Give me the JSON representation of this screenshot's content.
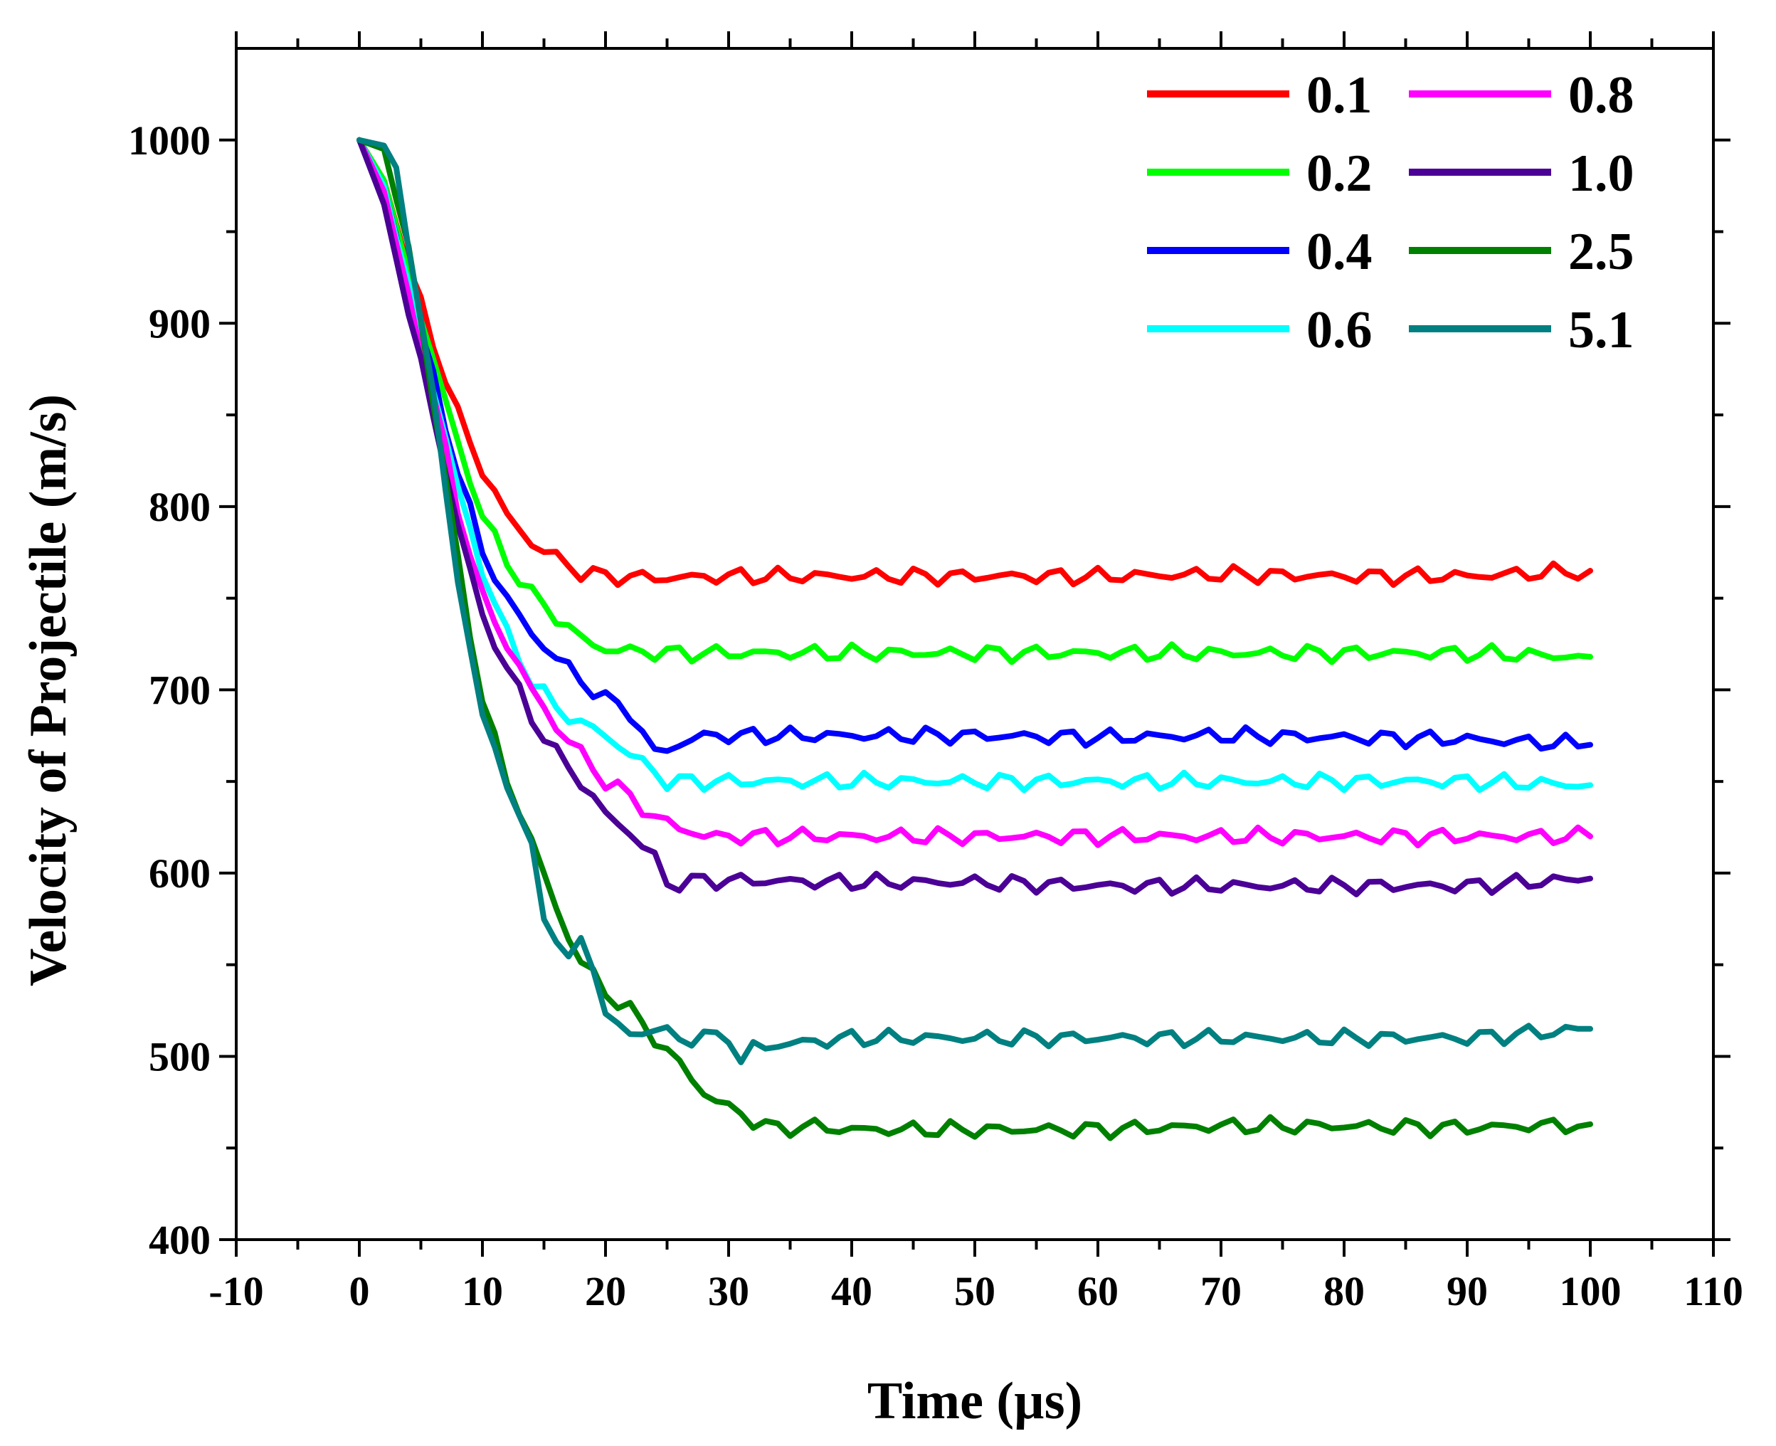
{
  "chart_data": {
    "type": "line",
    "title": "",
    "xlabel": "Time (µs)",
    "ylabel": "Velocity of  Projectile (m/s)",
    "xlim": [
      -10,
      110
    ],
    "ylim": [
      400,
      1050
    ],
    "xticks": [
      -10,
      0,
      10,
      20,
      30,
      40,
      50,
      60,
      70,
      80,
      90,
      100,
      110
    ],
    "yticks": [
      400,
      500,
      600,
      700,
      800,
      900,
      1000
    ],
    "xtick_labels": [
      "-10",
      "0",
      "10",
      "20",
      "30",
      "40",
      "50",
      "60",
      "70",
      "80",
      "90",
      "100",
      "110"
    ],
    "ytick_labels": [
      "400",
      "500",
      "600",
      "700",
      "800",
      "900",
      "1000"
    ],
    "legend_position": "top-right",
    "series": [
      {
        "name": "0.1",
        "color": "#ff0000",
        "x": [
          0,
          2,
          4,
          6,
          8,
          10,
          12,
          14,
          16,
          18,
          20,
          25,
          30,
          40,
          50,
          60,
          70,
          80,
          90,
          100
        ],
        "y": [
          1000,
          978,
          930,
          890,
          850,
          820,
          795,
          780,
          772,
          764,
          762,
          761,
          762,
          762,
          762,
          762,
          763,
          762,
          762,
          765
        ]
      },
      {
        "name": "0.2",
        "color": "#00ff00",
        "x": [
          0,
          2,
          4,
          6,
          8,
          10,
          12,
          14,
          16,
          18,
          20,
          25,
          30,
          40,
          50,
          60,
          70,
          80,
          90,
          100
        ],
        "y": [
          1000,
          978,
          928,
          880,
          835,
          795,
          770,
          752,
          740,
          728,
          722,
          720,
          720,
          720,
          720,
          720,
          720,
          720,
          720,
          718
        ]
      },
      {
        "name": "0.4",
        "color": "#0000ff",
        "x": [
          0,
          2,
          4,
          6,
          8,
          10,
          12,
          14,
          16,
          18,
          20,
          22,
          24,
          25,
          28,
          30,
          40,
          50,
          60,
          70,
          80,
          90,
          100
        ],
        "y": [
          1000,
          975,
          920,
          870,
          820,
          775,
          750,
          730,
          718,
          705,
          695,
          688,
          665,
          668,
          675,
          675,
          675,
          675,
          674,
          675,
          674,
          673,
          670
        ]
      },
      {
        "name": "0.6",
        "color": "#00ffff",
        "x": [
          0,
          2,
          4,
          6,
          8,
          10,
          12,
          14,
          16,
          18,
          20,
          22,
          24,
          25,
          30,
          40,
          50,
          60,
          70,
          80,
          90,
          100
        ],
        "y": [
          1000,
          975,
          918,
          865,
          810,
          765,
          730,
          705,
          690,
          682,
          675,
          665,
          655,
          650,
          650,
          650,
          650,
          650,
          650,
          650,
          650,
          648
        ]
      },
      {
        "name": "0.8",
        "color": "#ff00ff",
        "x": [
          0,
          2,
          4,
          6,
          8,
          10,
          12,
          14,
          16,
          18,
          20,
          22,
          24,
          26,
          28,
          30,
          40,
          50,
          60,
          70,
          80,
          90,
          100
        ],
        "y": [
          1000,
          972,
          915,
          860,
          800,
          750,
          725,
          700,
          680,
          665,
          650,
          642,
          630,
          625,
          620,
          620,
          620,
          620,
          620,
          620,
          620,
          620,
          620
        ]
      },
      {
        "name": "1.0",
        "color": "#4b0096",
        "x": [
          0,
          2,
          4,
          6,
          8,
          10,
          12,
          14,
          16,
          18,
          20,
          22,
          24,
          25,
          28,
          30,
          40,
          50,
          60,
          70,
          80,
          90,
          100
        ],
        "y": [
          1000,
          965,
          905,
          850,
          790,
          740,
          712,
          685,
          665,
          650,
          632,
          622,
          608,
          594,
          596,
          596,
          595,
          595,
          593,
          593,
          593,
          593,
          597
        ]
      },
      {
        "name": "2.5",
        "color": "#008000",
        "x": [
          0,
          2,
          4,
          6,
          8,
          10,
          12,
          14,
          16,
          18,
          20,
          22,
          24,
          26,
          28,
          30,
          32,
          34,
          36,
          40,
          50,
          60,
          70,
          80,
          90,
          100
        ],
        "y": [
          1000,
          995,
          940,
          860,
          770,
          695,
          650,
          618,
          580,
          552,
          535,
          525,
          510,
          496,
          480,
          472,
          465,
          460,
          462,
          460,
          460,
          460,
          462,
          462,
          461,
          463
        ]
      },
      {
        "name": "5.1",
        "color": "#008080",
        "x": [
          0,
          2,
          3,
          4,
          6,
          8,
          10,
          12,
          14,
          15,
          16,
          17,
          18,
          19,
          20,
          22,
          24,
          26,
          28,
          30,
          31,
          32,
          40,
          50,
          60,
          70,
          80,
          90,
          100
        ],
        "y": [
          1000,
          997,
          985,
          945,
          860,
          760,
          685,
          650,
          612,
          578,
          565,
          550,
          565,
          550,
          522,
          512,
          515,
          510,
          510,
          512,
          496,
          505,
          510,
          510,
          510,
          510,
          510,
          510,
          515
        ]
      }
    ]
  }
}
